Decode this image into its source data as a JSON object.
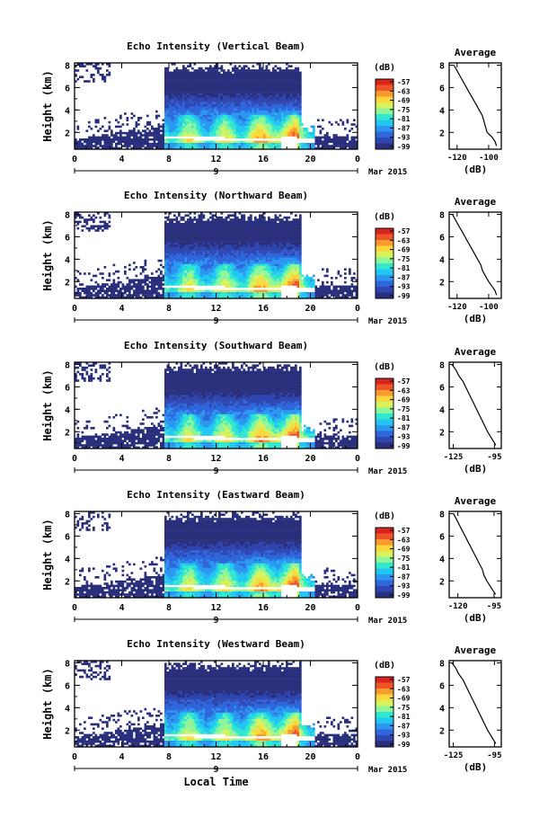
{
  "x_label": "Local Time",
  "date_label": "Mar 2015",
  "date_axis_day": "9",
  "colorbar_unit": "(dB)",
  "colorbar_ticks": [
    "-57",
    "-63",
    "-69",
    "-75",
    "-81",
    "-87",
    "-93",
    "-99"
  ],
  "colors": {
    "no_echo": "#ffffff",
    "weak_echo": "#2a2f7c",
    "colormap": [
      "#2a2f7c",
      "#2f46b0",
      "#2f66dc",
      "#2a96ef",
      "#22c6f3",
      "#31e8cf",
      "#8df59a",
      "#d7f25a",
      "#fbd63c",
      "#f99a2e",
      "#ef5328",
      "#d9251f"
    ],
    "bright_band": "#ffffff"
  },
  "chart_data": [
    {
      "type": "heatmap",
      "title": "Echo Intensity (Vertical Beam)",
      "ylabel": "Height (km)",
      "xlabel": "",
      "x_ticks": [
        "0",
        "4",
        "8",
        "12",
        "16",
        "20",
        "0"
      ],
      "y_ticks": [
        "2",
        "4",
        "6",
        "8"
      ],
      "xlim": [
        0,
        24
      ],
      "ylim": [
        0.5,
        8.2
      ],
      "colorbar": {
        "label": "(dB)",
        "ticks": [
          -57,
          -63,
          -69,
          -75,
          -81,
          -87,
          -93,
          -99
        ]
      },
      "profile": {
        "title": "Average",
        "xlabel": "(dB)",
        "x_ticks": [
          "-120",
          "-100"
        ],
        "x_tick_values": [
          -120,
          -100
        ],
        "xlim": [
          -125,
          -92
        ],
        "y_ticks": [
          "2",
          "4",
          "6",
          "8"
        ],
        "ylim": [
          0.5,
          8.2
        ],
        "points": [
          [
            -95,
            0.8
          ],
          [
            -96,
            1.2
          ],
          [
            -98,
            1.6
          ],
          [
            -101,
            2.0
          ],
          [
            -102,
            2.5
          ],
          [
            -103,
            3.0
          ],
          [
            -104,
            3.5
          ],
          [
            -106,
            4.0
          ],
          [
            -108,
            4.5
          ],
          [
            -110,
            5.0
          ],
          [
            -112,
            5.5
          ],
          [
            -114,
            6.0
          ],
          [
            -116,
            6.5
          ],
          [
            -118,
            7.0
          ],
          [
            -120,
            7.5
          ],
          [
            -122,
            8.0
          ]
        ]
      }
    },
    {
      "type": "heatmap",
      "title": "Echo Intensity (Northward Beam)",
      "ylabel": "Height (km)",
      "xlabel": "",
      "x_ticks": [
        "0",
        "4",
        "8",
        "12",
        "16",
        "20",
        "0"
      ],
      "y_ticks": [
        "2",
        "4",
        "6",
        "8"
      ],
      "xlim": [
        0,
        24
      ],
      "ylim": [
        0.5,
        8.2
      ],
      "colorbar": {
        "label": "(dB)",
        "ticks": [
          -57,
          -63,
          -69,
          -75,
          -81,
          -87,
          -93,
          -99
        ]
      },
      "profile": {
        "title": "Average",
        "xlabel": "(dB)",
        "x_ticks": [
          "-120",
          "-100"
        ],
        "x_tick_values": [
          -120,
          -100
        ],
        "xlim": [
          -125,
          -92
        ],
        "y_ticks": [
          "2",
          "4",
          "6",
          "8"
        ],
        "ylim": [
          0.5,
          8.2
        ],
        "points": [
          [
            -95,
            0.8
          ],
          [
            -96,
            1.2
          ],
          [
            -98,
            1.6
          ],
          [
            -100,
            2.0
          ],
          [
            -102,
            2.5
          ],
          [
            -104,
            3.0
          ],
          [
            -105,
            3.5
          ],
          [
            -107,
            4.0
          ],
          [
            -109,
            4.5
          ],
          [
            -111,
            5.0
          ],
          [
            -113,
            5.5
          ],
          [
            -115,
            6.0
          ],
          [
            -117,
            6.5
          ],
          [
            -119,
            7.0
          ],
          [
            -121,
            7.5
          ],
          [
            -123,
            8.0
          ]
        ]
      }
    },
    {
      "type": "heatmap",
      "title": "Echo Intensity (Southward Beam)",
      "ylabel": "Height (km)",
      "xlabel": "",
      "x_ticks": [
        "0",
        "4",
        "8",
        "12",
        "16",
        "20",
        "0"
      ],
      "y_ticks": [
        "2",
        "4",
        "6",
        "8"
      ],
      "xlim": [
        0,
        24
      ],
      "ylim": [
        0.5,
        8.2
      ],
      "colorbar": {
        "label": "(dB)",
        "ticks": [
          -57,
          -63,
          -69,
          -75,
          -81,
          -87,
          -93,
          -99
        ]
      },
      "profile": {
        "title": "Average",
        "xlabel": "(dB)",
        "x_ticks": [
          "-125",
          "-95"
        ],
        "x_tick_values": [
          -125,
          -95
        ],
        "xlim": [
          -128,
          -90
        ],
        "y_ticks": [
          "2",
          "4",
          "6",
          "8"
        ],
        "ylim": [
          0.5,
          8.2
        ],
        "points": [
          [
            -94,
            0.8
          ],
          [
            -96,
            1.2
          ],
          [
            -98,
            1.6
          ],
          [
            -100,
            2.0
          ],
          [
            -102,
            2.5
          ],
          [
            -104,
            3.0
          ],
          [
            -106,
            3.5
          ],
          [
            -108,
            4.0
          ],
          [
            -110,
            4.5
          ],
          [
            -112,
            5.0
          ],
          [
            -114,
            5.5
          ],
          [
            -116,
            6.0
          ],
          [
            -118,
            6.5
          ],
          [
            -121,
            7.0
          ],
          [
            -123,
            7.5
          ],
          [
            -126,
            8.0
          ]
        ]
      }
    },
    {
      "type": "heatmap",
      "title": "Echo Intensity (Eastward Beam)",
      "ylabel": "Height (km)",
      "xlabel": "",
      "x_ticks": [
        "0",
        "4",
        "8",
        "12",
        "16",
        "20",
        "0"
      ],
      "y_ticks": [
        "2",
        "4",
        "6",
        "8"
      ],
      "xlim": [
        0,
        24
      ],
      "ylim": [
        0.5,
        8.2
      ],
      "colorbar": {
        "label": "(dB)",
        "ticks": [
          -57,
          -63,
          -69,
          -75,
          -81,
          -87,
          -93,
          -99
        ]
      },
      "profile": {
        "title": "Average",
        "xlabel": "(dB)",
        "x_ticks": [
          "-120",
          "-95"
        ],
        "x_tick_values": [
          -120,
          -95
        ],
        "xlim": [
          -126,
          -90
        ],
        "y_ticks": [
          "2",
          "4",
          "6",
          "8"
        ],
        "ylim": [
          0.5,
          8.2
        ],
        "points": [
          [
            -94,
            0.8
          ],
          [
            -96,
            1.2
          ],
          [
            -98,
            1.6
          ],
          [
            -100,
            2.0
          ],
          [
            -102,
            2.5
          ],
          [
            -103,
            3.0
          ],
          [
            -105,
            3.5
          ],
          [
            -107,
            4.0
          ],
          [
            -109,
            4.5
          ],
          [
            -111,
            5.0
          ],
          [
            -113,
            5.5
          ],
          [
            -115,
            6.0
          ],
          [
            -117,
            6.5
          ],
          [
            -119,
            7.0
          ],
          [
            -121,
            7.5
          ],
          [
            -123,
            8.0
          ]
        ]
      }
    },
    {
      "type": "heatmap",
      "title": "Echo Intensity (Westward Beam)",
      "ylabel": "Height (km)",
      "xlabel": "Local Time",
      "x_ticks": [
        "0",
        "4",
        "8",
        "12",
        "16",
        "20",
        "0"
      ],
      "y_ticks": [
        "2",
        "4",
        "6",
        "8"
      ],
      "xlim": [
        0,
        24
      ],
      "ylim": [
        0.5,
        8.2
      ],
      "colorbar": {
        "label": "(dB)",
        "ticks": [
          -57,
          -63,
          -69,
          -75,
          -81,
          -87,
          -93,
          -99
        ]
      },
      "profile": {
        "title": "Average",
        "xlabel": "(dB)",
        "x_ticks": [
          "-125",
          "-95"
        ],
        "x_tick_values": [
          -125,
          -95
        ],
        "xlim": [
          -128,
          -90
        ],
        "y_ticks": [
          "2",
          "4",
          "6",
          "8"
        ],
        "ylim": [
          0.5,
          8.2
        ],
        "points": [
          [
            -94,
            0.8
          ],
          [
            -96,
            1.2
          ],
          [
            -98,
            1.6
          ],
          [
            -100,
            2.0
          ],
          [
            -102,
            2.5
          ],
          [
            -104,
            3.0
          ],
          [
            -106,
            3.5
          ],
          [
            -108,
            4.0
          ],
          [
            -110,
            4.5
          ],
          [
            -112,
            5.0
          ],
          [
            -114,
            5.5
          ],
          [
            -116,
            6.0
          ],
          [
            -118,
            6.5
          ],
          [
            -121,
            7.0
          ],
          [
            -123,
            7.5
          ],
          [
            -126,
            8.0
          ]
        ]
      }
    }
  ]
}
